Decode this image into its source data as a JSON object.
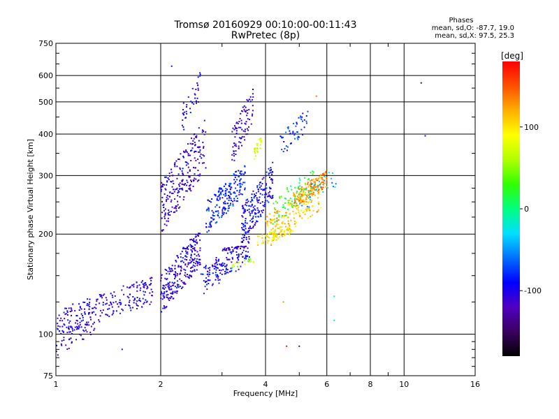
{
  "chart_data": {
    "type": "scatter",
    "title": "Tromsø 20160929 00:10:00-00:11:43",
    "subtitle": "RwPretec (8p)",
    "xlabel": "Frequency [MHz]",
    "ylabel": "Stationary phase Virtual Height [km]",
    "x_scale": "log",
    "y_scale": "log",
    "xlim": [
      1,
      16
    ],
    "ylim": [
      75,
      750
    ],
    "x_ticks": [
      1,
      2,
      4,
      6,
      8,
      10,
      16
    ],
    "x_tick_labels": [
      "1",
      "2",
      "4",
      "6",
      "8",
      "10",
      "16"
    ],
    "y_ticks": [
      75,
      100,
      200,
      300,
      400,
      500,
      600,
      750
    ],
    "y_tick_labels": [
      "75",
      "100",
      "200",
      "300",
      "400",
      "500",
      "600",
      "750"
    ],
    "grid": true,
    "phases_info": {
      "heading": "Phases",
      "line_o": "mean, sd,O: -87.7, 19.0",
      "line_x": "mean, sd,X:  97.5, 25.3"
    },
    "colorbar": {
      "unit_label": "[deg]",
      "range": [
        -180,
        180
      ],
      "tick_values": [
        100,
        0,
        -100
      ],
      "tick_labels": [
        "100",
        "0",
        "-100"
      ],
      "colors": [
        "#000000",
        "#3a0060",
        "#5000c0",
        "#0000ff",
        "#0070ff",
        "#00e0ff",
        "#00ff80",
        "#30ff00",
        "#b0ff00",
        "#ffff00",
        "#ffb000",
        "#ff5000",
        "#ff0000"
      ]
    },
    "clusters": [
      {
        "f": [
          1.0,
          1.9
        ],
        "h": [
          98,
          150
        ],
        "phase": -105,
        "n": 250
      },
      {
        "f": [
          1.0,
          1.3
        ],
        "h": [
          85,
          118
        ],
        "phase": -110,
        "n": 50
      },
      {
        "f": [
          2.0,
          2.6
        ],
        "h": [
          115,
          210
        ],
        "phase": -105,
        "n": 260
      },
      {
        "f": [
          2.0,
          2.7
        ],
        "h": [
          200,
          450
        ],
        "phase": -110,
        "n": 240
      },
      {
        "f": [
          2.3,
          2.6
        ],
        "h": [
          400,
          620
        ],
        "phase": -100,
        "n": 40
      },
      {
        "f": [
          2.6,
          3.6
        ],
        "h": [
          130,
          200
        ],
        "phase": -95,
        "n": 160
      },
      {
        "f": [
          2.7,
          3.5
        ],
        "h": [
          200,
          330
        ],
        "phase": -85,
        "n": 200
      },
      {
        "f": [
          3.2,
          3.7
        ],
        "h": [
          320,
          560
        ],
        "phase": -110,
        "n": 90
      },
      {
        "f": [
          3.4,
          4.2
        ],
        "h": [
          185,
          330
        ],
        "phase": -95,
        "n": 200
      },
      {
        "f": [
          3.0,
          3.5
        ],
        "h": [
          178,
          185
        ],
        "phase": -120,
        "n": 30
      },
      {
        "f": [
          4.0,
          5.8
        ],
        "h": [
          180,
          300
        ],
        "phase": 110,
        "n": 220
      },
      {
        "f": [
          4.8,
          6.0
        ],
        "h": [
          240,
          310
        ],
        "phase": 130,
        "n": 140
      },
      {
        "f": [
          3.8,
          4.8
        ],
        "h": [
          185,
          215
        ],
        "phase": 95,
        "n": 60
      },
      {
        "f": [
          3.2,
          3.7
        ],
        "h": [
          158,
          170
        ],
        "phase": 60,
        "n": 20
      },
      {
        "f": [
          3.7,
          3.9
        ],
        "h": [
          330,
          400
        ],
        "phase": 80,
        "n": 25
      },
      {
        "f": [
          4.2,
          5.5
        ],
        "h": [
          210,
          320
        ],
        "phase": 20,
        "n": 70
      },
      {
        "f": [
          4.4,
          5.3
        ],
        "h": [
          340,
          480
        ],
        "phase": -80,
        "n": 50
      },
      {
        "f": [
          5.0,
          6.4
        ],
        "h": [
          230,
          320
        ],
        "phase": -40,
        "n": 30
      }
    ],
    "isolated_points": [
      {
        "f": 11.2,
        "h": 570,
        "phase": -140
      },
      {
        "f": 11.5,
        "h": 395,
        "phase": -115
      },
      {
        "f": 6.3,
        "h": 130,
        "phase": 0
      },
      {
        "f": 6.3,
        "h": 110,
        "phase": -30
      },
      {
        "f": 4.6,
        "h": 92,
        "phase": 175
      },
      {
        "f": 5.0,
        "h": 92,
        "phase": -140
      },
      {
        "f": 1.55,
        "h": 90,
        "phase": -110
      },
      {
        "f": 5.6,
        "h": 520,
        "phase": 140
      },
      {
        "f": 2.15,
        "h": 640,
        "phase": -110
      },
      {
        "f": 4.5,
        "h": 125,
        "phase": 130
      }
    ]
  }
}
